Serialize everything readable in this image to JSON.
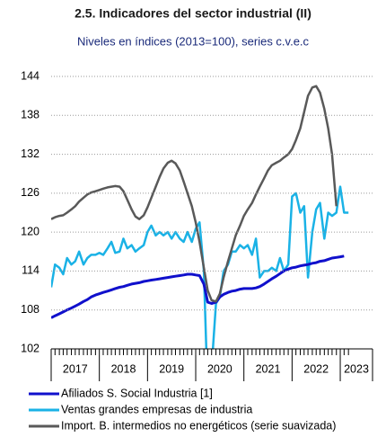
{
  "chart_data": {
    "type": "line",
    "title": "2.5. Indicadores del sector industrial (II)",
    "subtitle": "Niveles en índices (2013=100), series c.v.e.c",
    "categories": [
      "2017",
      "2018",
      "2019",
      "2020",
      "2021",
      "2022",
      "2023"
    ],
    "x": [
      2017,
      2017.08,
      2017.17,
      2017.25,
      2017.33,
      2017.42,
      2017.5,
      2017.58,
      2017.67,
      2017.75,
      2017.83,
      2017.92,
      2018,
      2018.08,
      2018.17,
      2018.25,
      2018.33,
      2018.42,
      2018.5,
      2018.58,
      2018.67,
      2018.75,
      2018.83,
      2018.92,
      2019,
      2019.08,
      2019.17,
      2019.25,
      2019.33,
      2019.42,
      2019.5,
      2019.58,
      2019.67,
      2019.75,
      2019.83,
      2019.92,
      2020,
      2020.08,
      2020.17,
      2020.25,
      2020.33,
      2020.42,
      2020.5,
      2020.58,
      2020.67,
      2020.75,
      2020.83,
      2020.92,
      2021,
      2021.08,
      2021.17,
      2021.25,
      2021.33,
      2021.42,
      2021.5,
      2021.58,
      2021.67,
      2021.75,
      2021.83,
      2021.92,
      2022,
      2022.08,
      2022.17,
      2022.25,
      2022.33,
      2022.42,
      2022.5,
      2022.58,
      2022.67,
      2022.75,
      2022.83,
      2022.92,
      2023,
      2023.08,
      2023.17
    ],
    "series": [
      {
        "name": "Afiliados S. Social Industria [1]",
        "color": "#1010cc",
        "values": [
          106.8,
          107.1,
          107.4,
          107.7,
          108.0,
          108.3,
          108.6,
          108.9,
          109.3,
          109.6,
          110.0,
          110.3,
          110.5,
          110.7,
          110.9,
          111.1,
          111.3,
          111.5,
          111.6,
          111.8,
          112.0,
          112.1,
          112.2,
          112.4,
          112.5,
          112.6,
          112.7,
          112.8,
          112.9,
          113.0,
          113.1,
          113.2,
          113.3,
          113.4,
          113.5,
          113.5,
          113.4,
          113.3,
          112.0,
          109.2,
          109.0,
          109.2,
          110.0,
          110.4,
          110.7,
          110.9,
          111.0,
          111.2,
          111.3,
          111.3,
          111.3,
          111.4,
          111.6,
          112.0,
          112.4,
          112.8,
          113.2,
          113.6,
          114.0,
          114.3,
          114.5,
          114.6,
          114.8,
          114.9,
          115.0,
          115.2,
          115.3,
          115.5,
          115.6,
          115.8,
          116.0,
          116.1,
          116.2,
          116.3,
          null
        ]
      },
      {
        "name": "Ventas grandes empresas de industria",
        "color": "#1ab2e6",
        "values": [
          111.5,
          115,
          114.5,
          113.5,
          116,
          115,
          115.5,
          117,
          115,
          116,
          116.5,
          116.5,
          116.8,
          116.5,
          117.5,
          118.5,
          116.8,
          117,
          119,
          117.5,
          118,
          117,
          117.5,
          118,
          120,
          121,
          119.5,
          120,
          119.5,
          120,
          119,
          120,
          119,
          118.5,
          120,
          118.5,
          120.5,
          121.5,
          114,
          95,
          99,
          109,
          110,
          114,
          115,
          117,
          117,
          118,
          117.5,
          118,
          116.5,
          119,
          113,
          114,
          114,
          114.5,
          114,
          116,
          114,
          115,
          125.5,
          126,
          123,
          124,
          113,
          120,
          123.5,
          124.5,
          119,
          123,
          122.5,
          123,
          127,
          123,
          123
        ]
      },
      {
        "name": "Import. B. intermedios no energéticos (serie suavizada)",
        "color": "#595959",
        "values": [
          122,
          122.3,
          122.5,
          122.6,
          123,
          123.5,
          124,
          124.7,
          125.3,
          125.8,
          126.1,
          126.3,
          126.5,
          126.7,
          126.9,
          127,
          127.1,
          127,
          126.3,
          125,
          123.5,
          122.4,
          122,
          122.6,
          123.8,
          125.3,
          127,
          128.5,
          129.8,
          130.7,
          131,
          130.6,
          129.5,
          127.8,
          126,
          124,
          121.5,
          118.5,
          114.5,
          111,
          109.5,
          109.3,
          110.5,
          113,
          115.5,
          117.5,
          119.5,
          121,
          122.5,
          123.5,
          124.5,
          125.8,
          127,
          128.3,
          129.5,
          130.3,
          130.7,
          131,
          131.5,
          132,
          132.8,
          134.2,
          136,
          138.5,
          141,
          142.3,
          142.5,
          141.5,
          139,
          136,
          132,
          124,
          null,
          null,
          null
        ]
      }
    ],
    "xlim": [
      2017,
      2023.67
    ],
    "ylim": [
      102,
      144
    ],
    "yticks": [
      102,
      108,
      114,
      120,
      126,
      132,
      138,
      144
    ],
    "grid": true
  }
}
